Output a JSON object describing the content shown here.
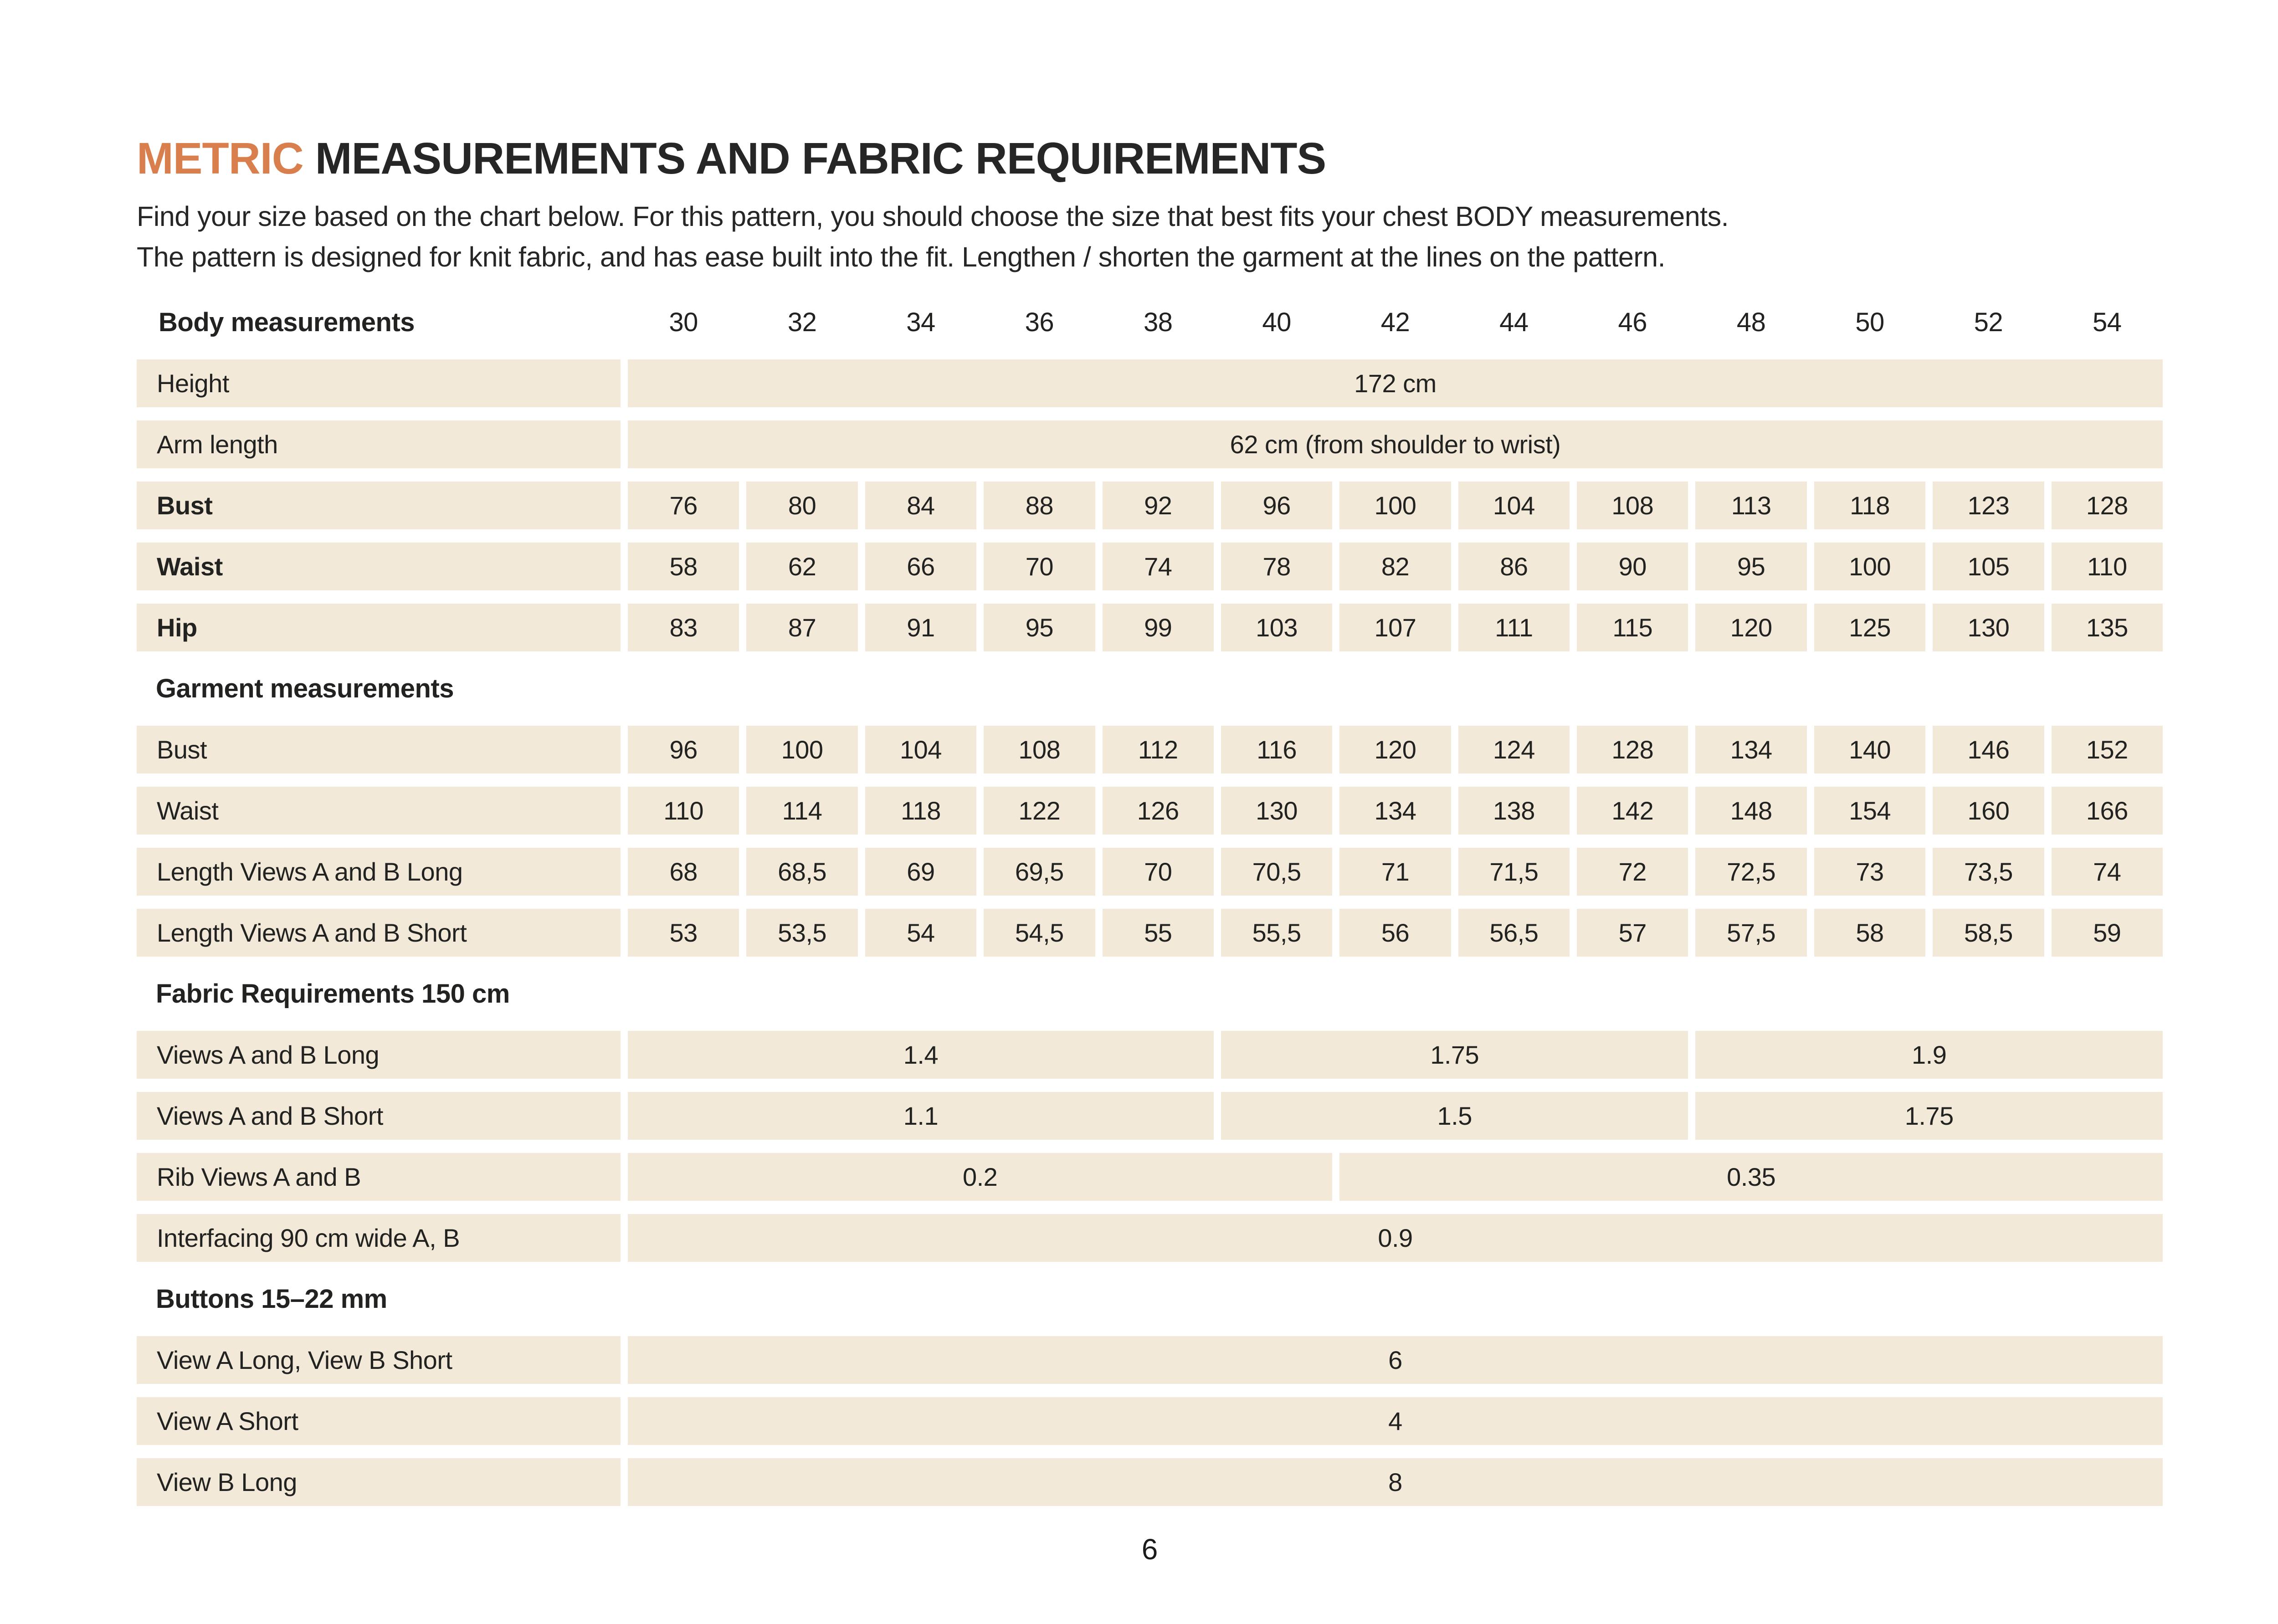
{
  "title": {
    "highlight": "METRIC",
    "rest": "MEASUREMENTS AND FABRIC REQUIREMENTS"
  },
  "intro_lines": [
    "Find your size based on the chart below. For this pattern, you should choose the size that best fits your chest BODY measurements.",
    "The pattern is designed for knit fabric, and has ease built into the fit. Lengthen / shorten the garment at the lines on the pattern."
  ],
  "sizes": [
    "30",
    "32",
    "34",
    "36",
    "38",
    "40",
    "42",
    "44",
    "46",
    "48",
    "50",
    "52",
    "54"
  ],
  "table": {
    "corner_label": "Body measurements",
    "rows": [
      {
        "type": "merged",
        "label": "Height",
        "bold": false,
        "spans": [
          {
            "text": "172 cm",
            "cols": 13
          }
        ]
      },
      {
        "type": "merged",
        "label": "Arm length",
        "bold": false,
        "spans": [
          {
            "text": "62 cm (from shoulder to wrist)",
            "cols": 13
          }
        ]
      },
      {
        "type": "values",
        "label": "Bust",
        "bold": true,
        "values": [
          "76",
          "80",
          "84",
          "88",
          "92",
          "96",
          "100",
          "104",
          "108",
          "113",
          "118",
          "123",
          "128"
        ]
      },
      {
        "type": "values",
        "label": "Waist",
        "bold": true,
        "values": [
          "58",
          "62",
          "66",
          "70",
          "74",
          "78",
          "82",
          "86",
          "90",
          "95",
          "100",
          "105",
          "110"
        ]
      },
      {
        "type": "values",
        "label": "Hip",
        "bold": true,
        "values": [
          "83",
          "87",
          "91",
          "95",
          "99",
          "103",
          "107",
          "111",
          "115",
          "120",
          "125",
          "130",
          "135"
        ]
      },
      {
        "type": "section",
        "label": "Garment measurements"
      },
      {
        "type": "values",
        "label": "Bust",
        "bold": false,
        "values": [
          "96",
          "100",
          "104",
          "108",
          "112",
          "116",
          "120",
          "124",
          "128",
          "134",
          "140",
          "146",
          "152"
        ]
      },
      {
        "type": "values",
        "label": "Waist",
        "bold": false,
        "values": [
          "110",
          "114",
          "118",
          "122",
          "126",
          "130",
          "134",
          "138",
          "142",
          "148",
          "154",
          "160",
          "166"
        ]
      },
      {
        "type": "values",
        "label": "Length Views A and B Long",
        "bold": false,
        "values": [
          "68",
          "68,5",
          "69",
          "69,5",
          "70",
          "70,5",
          "71",
          "71,5",
          "72",
          "72,5",
          "73",
          "73,5",
          "74"
        ]
      },
      {
        "type": "values",
        "label": "Length Views A and B Short",
        "bold": false,
        "values": [
          "53",
          "53,5",
          "54",
          "54,5",
          "55",
          "55,5",
          "56",
          "56,5",
          "57",
          "57,5",
          "58",
          "58,5",
          "59"
        ]
      },
      {
        "type": "section",
        "label": "Fabric Requirements 150 cm"
      },
      {
        "type": "merged",
        "label": "Views A and B Long",
        "bold": false,
        "spans": [
          {
            "text": "1.4",
            "cols": 5
          },
          {
            "text": "1.75",
            "cols": 4
          },
          {
            "text": "1.9",
            "cols": 4
          }
        ]
      },
      {
        "type": "merged",
        "label": "Views A and B Short",
        "bold": false,
        "spans": [
          {
            "text": "1.1",
            "cols": 5
          },
          {
            "text": "1.5",
            "cols": 4
          },
          {
            "text": "1.75",
            "cols": 4
          }
        ]
      },
      {
        "type": "merged",
        "label": "Rib Views A and B",
        "bold": false,
        "spans": [
          {
            "text": "0.2",
            "cols": 6
          },
          {
            "text": "0.35",
            "cols": 7
          }
        ]
      },
      {
        "type": "merged",
        "label": "Interfacing 90 cm wide A, B",
        "bold": false,
        "spans": [
          {
            "text": "0.9",
            "cols": 13
          }
        ]
      },
      {
        "type": "section",
        "label": "Buttons 15–22 mm"
      },
      {
        "type": "merged",
        "label": "View A Long, View B Short",
        "bold": false,
        "spans": [
          {
            "text": "6",
            "cols": 13
          }
        ]
      },
      {
        "type": "merged",
        "label": "View A Short",
        "bold": false,
        "spans": [
          {
            "text": "4",
            "cols": 13
          }
        ]
      },
      {
        "type": "merged",
        "label": "View B Long",
        "bold": false,
        "spans": [
          {
            "text": "8",
            "cols": 13
          }
        ]
      }
    ]
  },
  "footer": {
    "page_number": "6"
  },
  "colors": {
    "accent": "#d97f4e",
    "cell_bg": "#f2e9d8",
    "text": "#222220"
  }
}
